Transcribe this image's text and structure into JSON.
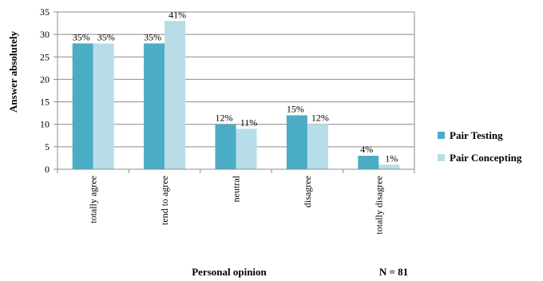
{
  "chart_data": {
    "type": "bar",
    "categories": [
      "totally agree",
      "tend to agree",
      "neutral",
      "disagree",
      "totally disagree"
    ],
    "series": [
      {
        "name": "Pair Testing",
        "values": [
          28,
          28,
          10,
          12,
          3
        ],
        "labels": [
          "35%",
          "35%",
          "12%",
          "15%",
          "4%"
        ],
        "color": "#4bacc6"
      },
      {
        "name": "Pair Concepting",
        "values": [
          28,
          33,
          9,
          10,
          1
        ],
        "labels": [
          "35%",
          "41%",
          "11%",
          "12%",
          "1%"
        ],
        "color": "#b7dde8"
      }
    ],
    "title": "",
    "xlabel": "Personal opinion",
    "ylabel": "Answer absolutely",
    "ylim": [
      0,
      35
    ],
    "yticks": [
      0,
      5,
      10,
      15,
      20,
      25,
      30,
      35
    ],
    "grid": true,
    "legend_position": "right",
    "note": "N = 81"
  }
}
